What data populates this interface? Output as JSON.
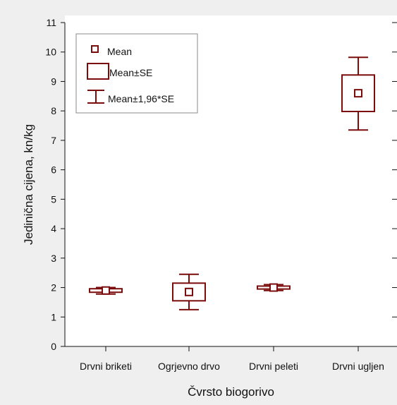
{
  "chart_data": {
    "type": "box",
    "xlabel": "Čvrsto biogorivo",
    "ylabel": "Jedinična cijena, kn/kg",
    "ylim": [
      0,
      11
    ],
    "yticks": [
      0,
      1,
      2,
      3,
      4,
      5,
      6,
      7,
      8,
      9,
      10,
      11
    ],
    "grid": false,
    "legend_position": "top-left",
    "color": "#7a0c0c",
    "categories": [
      "Drvni briketi",
      "Ogrjevno drvo",
      "Drvni peleti",
      "Drvni ugljen"
    ],
    "series": [
      {
        "category": "Drvni briketi",
        "mean": 1.9,
        "se_low": 1.84,
        "se_high": 1.96,
        "ci_low": 1.78,
        "ci_high": 2.0
      },
      {
        "category": "Ogrjevno drvo",
        "mean": 1.85,
        "se_low": 1.55,
        "se_high": 2.15,
        "ci_low": 1.25,
        "ci_high": 2.45
      },
      {
        "category": "Drvni peleti",
        "mean": 2.0,
        "se_low": 1.95,
        "se_high": 2.05,
        "ci_low": 1.9,
        "ci_high": 2.1
      },
      {
        "category": "Drvni ugljen",
        "mean": 8.6,
        "se_low": 7.98,
        "se_high": 9.22,
        "ci_low": 7.35,
        "ci_high": 9.82
      }
    ],
    "legend": [
      {
        "symbol": "point",
        "label": "Mean"
      },
      {
        "symbol": "box",
        "label": "Mean±SE"
      },
      {
        "symbol": "whisker",
        "label": "Mean±1,96*SE"
      }
    ]
  }
}
